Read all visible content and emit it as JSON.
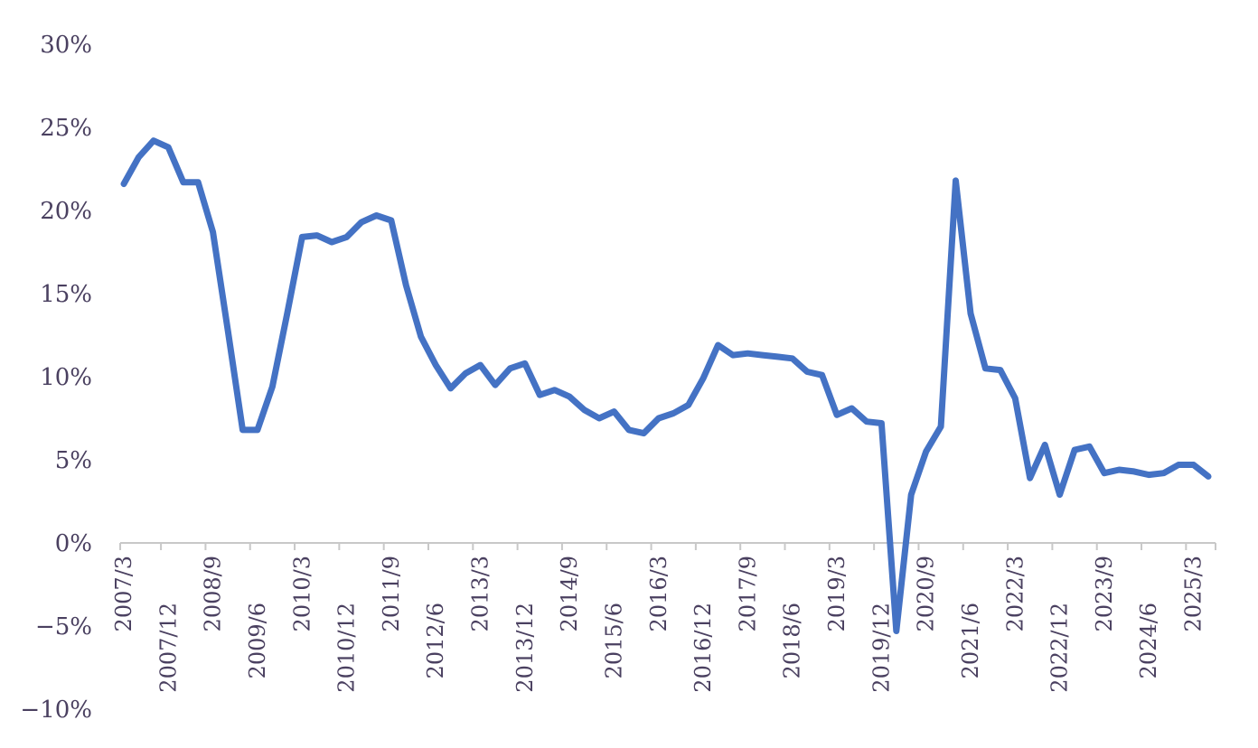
{
  "chart_data": {
    "type": "line",
    "ylim": [
      -10,
      30
    ],
    "y_ticks": [
      {
        "value": 30,
        "label": "30%"
      },
      {
        "value": 25,
        "label": "25%"
      },
      {
        "value": 20,
        "label": "20%"
      },
      {
        "value": 15,
        "label": "15%"
      },
      {
        "value": 10,
        "label": "10%"
      },
      {
        "value": 5,
        "label": "5%"
      },
      {
        "value": 0,
        "label": "0%"
      },
      {
        "value": -5,
        "label": "−5%"
      },
      {
        "value": -10,
        "label": "−10%"
      }
    ],
    "x_tick_labels": [
      "2007/3",
      "2007/12",
      "2008/9",
      "2009/6",
      "2010/3",
      "2010/12",
      "2011/9",
      "2012/6",
      "2013/3",
      "2013/12",
      "2014/9",
      "2015/6",
      "2016/3",
      "2016/12",
      "2017/9",
      "2018/6",
      "2019/3",
      "2019/12",
      "2020/9",
      "2021/6",
      "2022/3",
      "2022/12",
      "2023/9",
      "2024/6",
      "2025/3"
    ],
    "grid": false,
    "line_color": "#4472c4",
    "series": [
      {
        "x": [
          "2007/3",
          "2007/6",
          "2007/9",
          "2007/12",
          "2008/3",
          "2008/6",
          "2008/9",
          "2008/12",
          "2009/3",
          "2009/6",
          "2009/9",
          "2009/12",
          "2010/3",
          "2010/6",
          "2010/9",
          "2010/12",
          "2011/3",
          "2011/6",
          "2011/9",
          "2011/12",
          "2012/3",
          "2012/6",
          "2012/9",
          "2012/12",
          "2013/3",
          "2013/6",
          "2013/9",
          "2013/12",
          "2014/3",
          "2014/6",
          "2014/9",
          "2014/12",
          "2015/3",
          "2015/6",
          "2015/9",
          "2015/12",
          "2016/3",
          "2016/6",
          "2016/9",
          "2016/12",
          "2017/3",
          "2017/6",
          "2017/9",
          "2017/12",
          "2018/3",
          "2018/6",
          "2018/9",
          "2018/12",
          "2019/3",
          "2019/6",
          "2019/9",
          "2019/12",
          "2020/3",
          "2020/6",
          "2020/9",
          "2020/12",
          "2021/3",
          "2021/6",
          "2021/9",
          "2021/12",
          "2022/3",
          "2022/6",
          "2022/9",
          "2022/12",
          "2023/3",
          "2023/6",
          "2023/9",
          "2023/12",
          "2024/3",
          "2024/6",
          "2024/9",
          "2024/12",
          "2025/3",
          "2025/6"
        ],
        "values": [
          21.6,
          23.2,
          24.2,
          23.8,
          21.7,
          21.7,
          18.7,
          12.8,
          6.8,
          6.8,
          9.4,
          13.8,
          18.4,
          18.5,
          18.1,
          18.4,
          19.3,
          19.7,
          19.4,
          15.5,
          12.4,
          10.7,
          9.3,
          10.2,
          10.7,
          9.5,
          10.5,
          10.8,
          8.9,
          9.2,
          8.8,
          8.0,
          7.5,
          7.9,
          6.8,
          6.6,
          7.5,
          7.8,
          8.3,
          9.9,
          11.9,
          11.3,
          11.4,
          11.3,
          11.2,
          11.1,
          10.3,
          10.1,
          7.7,
          8.1,
          7.3,
          7.2,
          -5.3,
          2.9,
          5.5,
          7.0,
          21.8,
          13.8,
          10.5,
          10.4,
          8.7,
          3.9,
          5.9,
          2.9,
          5.6,
          5.8,
          4.2,
          4.4,
          4.3,
          4.1,
          4.2,
          4.7,
          4.7,
          4.0
        ]
      }
    ]
  }
}
